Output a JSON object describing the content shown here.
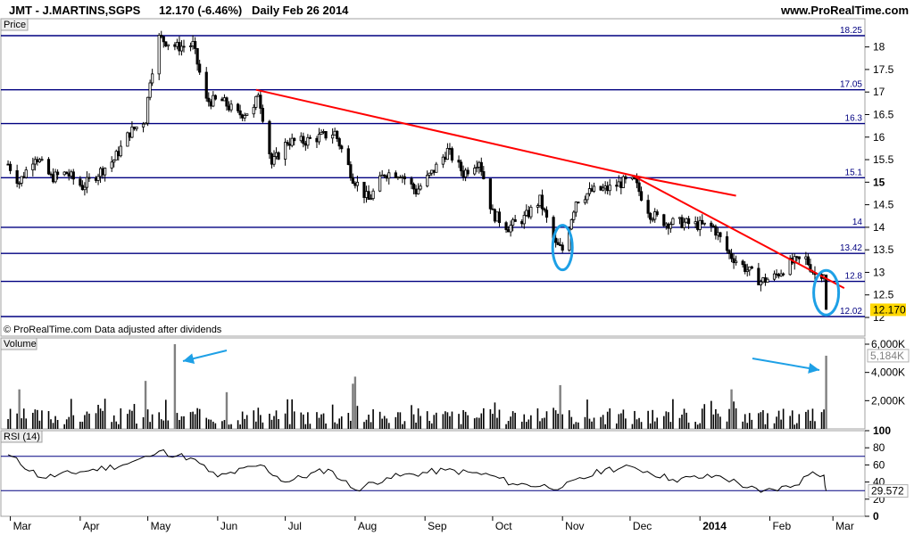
{
  "header": {
    "title": "JMT - J.MARTINS,SGPS",
    "last": "12.170 (-6.46%)",
    "period": "Daily  Feb 26 2014",
    "site": "www.ProRealTime.com",
    "copyright": "© ProRealTime.com  Data adjusted after dividends"
  },
  "colors": {
    "candle": "#000000",
    "level": "#000080",
    "trend": "#ff0000",
    "highlight": "#1ea0e6",
    "volume": "#000000",
    "volume_spike": "#808080",
    "last_price_box": "#ffd700"
  },
  "chart_data": [
    {
      "type": "candlestick",
      "panel_label": "Price",
      "x_ticks": [
        "Mar",
        "Apr",
        "May",
        "Jun",
        "Jul",
        "Aug",
        "Sep",
        "Oct",
        "Nov",
        "Dec",
        "2014",
        "Feb",
        "Mar"
      ],
      "y_ticks": [
        "12",
        "12.5",
        "13",
        "13.5",
        "14",
        "14.5",
        "15",
        "15.5",
        "16",
        "16.5",
        "17",
        "17.5",
        "18"
      ],
      "ylim": [
        12,
        18.4
      ],
      "horizontal_levels": [
        18.25,
        17.05,
        16.3,
        15.1,
        14,
        13.42,
        12.8,
        12.02
      ],
      "horizontal_level_labels": [
        "18.25",
        "17.05",
        "16.3",
        "15.1",
        "14",
        "13.42",
        "12.8",
        "12.02"
      ],
      "last_price_label": "12.170",
      "last_price": 12.17,
      "trendlines": [
        {
          "from": [
            "2013-06-18",
            17.05
          ],
          "to": [
            "2013-12-02",
            15.15
          ]
        },
        {
          "from": [
            "2013-12-02",
            15.15
          ],
          "to": [
            "2014-03-06",
            12.65
          ]
        },
        {
          "from": [
            "2013-12-02",
            15.15
          ],
          "to": [
            "2014-01-17",
            14.7
          ]
        }
      ],
      "highlights": [
        "2013-11-01",
        "2014-02-26"
      ],
      "close_path": [
        [
          "2013-02-28",
          15.4
        ],
        [
          "2013-03-05",
          15.0
        ],
        [
          "2013-03-12",
          15.6
        ],
        [
          "2013-03-19",
          15.1
        ],
        [
          "2013-03-26",
          15.2
        ],
        [
          "2013-04-02",
          14.9
        ],
        [
          "2013-04-09",
          15.2
        ],
        [
          "2013-04-16",
          15.5
        ],
        [
          "2013-04-23",
          16.1
        ],
        [
          "2013-04-30",
          16.4
        ],
        [
          "2013-05-02",
          17.3
        ],
        [
          "2013-05-06",
          18.2
        ],
        [
          "2013-05-14",
          18.0
        ],
        [
          "2013-05-21",
          18.05
        ],
        [
          "2013-05-27",
          16.8
        ],
        [
          "2013-06-03",
          16.8
        ],
        [
          "2013-06-10",
          16.5
        ],
        [
          "2013-06-17",
          16.6
        ],
        [
          "2013-06-19",
          17.0
        ],
        [
          "2013-06-25",
          15.4
        ],
        [
          "2013-07-02",
          15.9
        ],
        [
          "2013-07-09",
          15.9
        ],
        [
          "2013-07-16",
          16.0
        ],
        [
          "2013-07-23",
          16.1
        ],
        [
          "2013-07-31",
          15.1
        ],
        [
          "2013-08-07",
          14.6
        ],
        [
          "2013-08-14",
          15.2
        ],
        [
          "2013-08-21",
          15.2
        ],
        [
          "2013-08-28",
          14.8
        ],
        [
          "2013-09-04",
          15.2
        ],
        [
          "2013-09-11",
          15.7
        ],
        [
          "2013-09-18",
          15.2
        ],
        [
          "2013-09-25",
          15.5
        ],
        [
          "2013-10-01",
          14.3
        ],
        [
          "2013-10-08",
          14.0
        ],
        [
          "2013-10-15",
          14.2
        ],
        [
          "2013-10-22",
          14.6
        ],
        [
          "2013-10-29",
          13.6
        ],
        [
          "2013-11-01",
          13.5
        ],
        [
          "2013-11-07",
          14.6
        ],
        [
          "2013-11-14",
          14.8
        ],
        [
          "2013-11-21",
          14.85
        ],
        [
          "2013-11-28",
          15.0
        ],
        [
          "2013-12-03",
          15.0
        ],
        [
          "2013-12-10",
          14.3
        ],
        [
          "2013-12-17",
          14.1
        ],
        [
          "2013-12-24",
          14.1
        ],
        [
          "2013-12-31",
          14.05
        ],
        [
          "2014-01-07",
          14.0
        ],
        [
          "2014-01-14",
          13.4
        ],
        [
          "2014-01-21",
          13.1
        ],
        [
          "2014-01-28",
          12.8
        ],
        [
          "2014-02-03",
          12.9
        ],
        [
          "2014-02-10",
          13.2
        ],
        [
          "2014-02-17",
          13.3
        ],
        [
          "2014-02-21",
          12.95
        ],
        [
          "2014-02-25",
          13.0
        ],
        [
          "2014-02-26",
          12.17
        ]
      ]
    },
    {
      "type": "bar",
      "panel_label": "Volume",
      "y_ticks": [
        "6,000K",
        "4,000K",
        "2,000K"
      ],
      "last_value_label": "5,184K",
      "ylim": [
        0,
        6200
      ],
      "spikes": [
        [
          "2013-05-13",
          6000
        ],
        [
          "2013-04-30",
          3400
        ],
        [
          "2013-03-05",
          2800
        ],
        [
          "2013-06-05",
          2600
        ],
        [
          "2013-08-01",
          3700
        ],
        [
          "2013-07-31",
          3200
        ],
        [
          "2013-10-31",
          3100
        ],
        [
          "2014-01-15",
          2800
        ],
        [
          "2014-02-26",
          5184
        ]
      ],
      "typical_range": [
        300,
        1500
      ]
    },
    {
      "type": "line",
      "panel_label": "RSI (14)",
      "y_ticks": [
        "100",
        "80",
        "60",
        "40",
        "20",
        "0"
      ],
      "ylim": [
        0,
        100
      ],
      "bands": [
        70,
        30
      ],
      "last_value_label": "29.572",
      "path": [
        [
          "2013-02-28",
          72
        ],
        [
          "2013-03-15",
          45
        ],
        [
          "2013-04-01",
          52
        ],
        [
          "2013-04-20",
          60
        ],
        [
          "2013-05-02",
          70
        ],
        [
          "2013-05-06",
          76
        ],
        [
          "2013-05-20",
          68
        ],
        [
          "2013-06-01",
          46
        ],
        [
          "2013-06-20",
          60
        ],
        [
          "2013-07-01",
          40
        ],
        [
          "2013-07-20",
          55
        ],
        [
          "2013-08-01",
          31
        ],
        [
          "2013-08-15",
          45
        ],
        [
          "2013-09-10",
          54
        ],
        [
          "2013-09-30",
          48
        ],
        [
          "2013-10-10",
          38
        ],
        [
          "2013-11-01",
          34
        ],
        [
          "2013-11-20",
          55
        ],
        [
          "2013-12-03",
          57
        ],
        [
          "2013-12-20",
          43
        ],
        [
          "2014-01-10",
          47
        ],
        [
          "2014-01-28",
          28
        ],
        [
          "2014-02-12",
          36
        ],
        [
          "2014-02-20",
          52
        ],
        [
          "2014-02-25",
          48
        ],
        [
          "2014-02-26",
          29.572
        ]
      ]
    }
  ]
}
